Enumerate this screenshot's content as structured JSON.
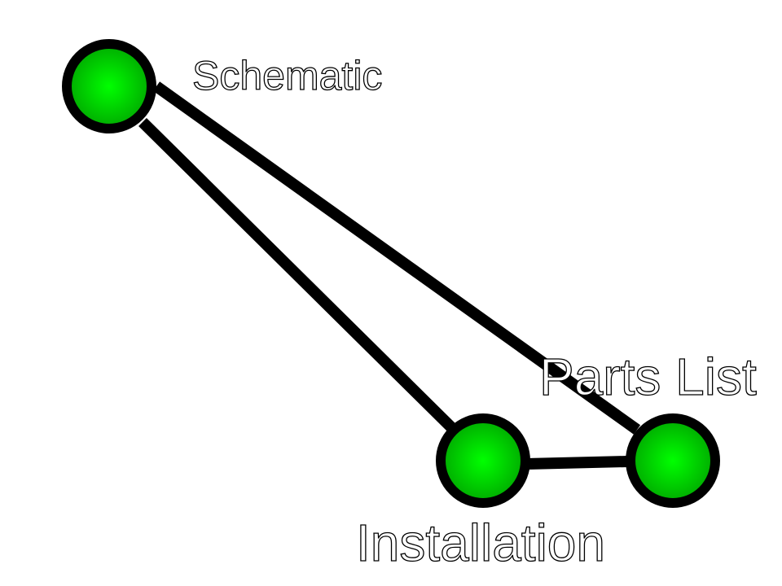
{
  "diagram": {
    "nodes": [
      {
        "id": "schematic",
        "label": "Schematic"
      },
      {
        "id": "installation",
        "label": "Installation"
      },
      {
        "id": "parts-list",
        "label": "Parts List"
      }
    ],
    "edges": [
      {
        "from": "schematic",
        "to": "installation"
      },
      {
        "from": "schematic",
        "to": "parts-list"
      },
      {
        "from": "installation",
        "to": "parts-list"
      }
    ],
    "colors": {
      "node_fill_center": "#00ff00",
      "node_fill_edge": "#00aa00",
      "node_outline": "#000000",
      "edge": "#000000",
      "label_fill": "#ffffff",
      "label_outline": "#000000"
    }
  }
}
